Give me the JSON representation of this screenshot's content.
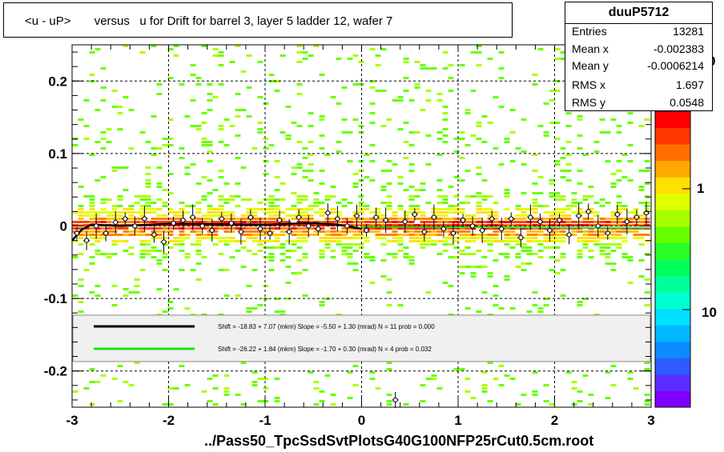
{
  "title": "<u - uP>       versus   u for Drift for barrel 3, layer 5 ladder 12, wafer 7",
  "footer": "../Pass50_TpcSsdSvtPlotsG40G100NFP25rCut0.5cm.root",
  "stats": {
    "name": "duuP5712",
    "rows": [
      {
        "label": "Entries",
        "value": "13281"
      },
      {
        "label": "Mean x",
        "value": "-0.002383"
      },
      {
        "label": "Mean y",
        "value": "-0.0006214"
      },
      {
        "label": "RMS x",
        "value": "1.697"
      },
      {
        "label": "RMS y",
        "value": "0.0548"
      }
    ]
  },
  "palette": {
    "labels": [
      "0",
      "1",
      "10"
    ],
    "colors": [
      "#7f00ff",
      "#5b2cff",
      "#2e5bff",
      "#0a8cff",
      "#00b8ff",
      "#00e0ff",
      "#00ffd0",
      "#00ff9a",
      "#00ff5a",
      "#28ff28",
      "#66ff00",
      "#a8ff00",
      "#e0ff00",
      "#ffe000",
      "#ffa800",
      "#ff7000",
      "#ff3800",
      "#ff0000"
    ]
  },
  "colors": {
    "fit_black": "#000000",
    "fit_green": "#22dd22",
    "profile_red": "#ff0000",
    "legend_bg": "#f0f0f0"
  },
  "legend": [
    {
      "color": "#000000",
      "text": "Shift =   -18.83 + 7.07 (mkm) Slope =    -5.50 + 1.30 (mrad)  N = 11 prob = 0.000"
    },
    {
      "color": "#22dd22",
      "text": "Shift =   -26.22 + 1.84 (mkm) Slope =    -1.70 + 0.30 (mrad)  N = 4 prob = 0.032"
    }
  ],
  "chart_data": {
    "type": "heatmap",
    "title": "<u - uP>       versus   u for Drift for barrel 3, layer 5 ladder 12, wafer 7",
    "xlabel": "../Pass50_TpcSsdSvtPlotsG40G100NFP25rCut0.5cm.root",
    "ylabel": "",
    "xlim": [
      -3,
      3
    ],
    "ylim": [
      -0.25,
      0.25
    ],
    "xticks": [
      -3,
      -2,
      -1,
      0,
      1,
      2,
      3
    ],
    "yticks": [
      -0.2,
      -0.1,
      0,
      0.1,
      0.2
    ],
    "ytick_labels": [
      "-0.2",
      "-0.1",
      "0",
      "0.1",
      "0.2"
    ],
    "grid": true,
    "z_scale": "log",
    "z_labels": [
      "1",
      "10"
    ],
    "fits": [
      {
        "name": "Shift = -18.83 + 7.07 (mkm) Slope = -5.50 + 1.30 (mrad) N = 11 prob = 0.000",
        "x": [
          -3.0,
          -2.9,
          -2.8,
          -2.5,
          -2.0,
          -1.0,
          -0.5,
          -0.25,
          0.0
        ],
        "y": [
          -0.02,
          -0.005,
          0.002,
          0.0,
          0.003,
          0.002,
          0.004,
          0.002,
          -0.004
        ]
      },
      {
        "name": "Shift = -26.22 + 1.84 (mkm) Slope = -1.70 + 0.30 (mrad) N = 4 prob = 0.032",
        "x": [
          0.0,
          3.0
        ],
        "y": [
          -0.001,
          -0.003
        ]
      }
    ],
    "profile": {
      "x": [
        -2.95,
        -2.85,
        -2.75,
        -2.65,
        -2.55,
        -2.45,
        -2.35,
        -2.25,
        -2.15,
        -2.05,
        -1.95,
        -1.85,
        -1.75,
        -1.65,
        -1.55,
        -1.45,
        -1.35,
        -1.25,
        -1.15,
        -1.05,
        -0.95,
        -0.85,
        -0.75,
        -0.65,
        -0.55,
        -0.45,
        -0.35,
        -0.25,
        -0.15,
        -0.05,
        0.05,
        0.15,
        0.25,
        0.35,
        0.45,
        0.55,
        0.65,
        0.75,
        0.85,
        0.95,
        1.05,
        1.15,
        1.25,
        1.35,
        1.45,
        1.55,
        1.65,
        1.75,
        1.85,
        1.95,
        2.05,
        2.15,
        2.25,
        2.35,
        2.45,
        2.55,
        2.65,
        2.75,
        2.85,
        2.95
      ],
      "y": [
        -0.01,
        -0.02,
        0.0,
        -0.01,
        0.005,
        0.01,
        0.0,
        0.01,
        -0.012,
        -0.022,
        0.004,
        0.008,
        0.012,
        0.0,
        -0.006,
        0.01,
        0.004,
        -0.008,
        0.012,
        -0.004,
        -0.01,
        0.008,
        -0.008,
        0.012,
        0.0,
        -0.004,
        0.018,
        0.01,
        0.0,
        0.014,
        -0.006,
        0.012,
        0.008,
        -0.24,
        0.006,
        0.016,
        -0.008,
        0.012,
        -0.004,
        -0.01,
        0.008,
        0.0,
        -0.006,
        0.01,
        -0.004,
        0.01,
        -0.016,
        0.012,
        0.006,
        -0.006,
        0.008,
        -0.012,
        0.014,
        0.02,
        0.0,
        -0.01,
        0.016,
        0.006,
        0.012,
        0.018
      ]
    }
  }
}
